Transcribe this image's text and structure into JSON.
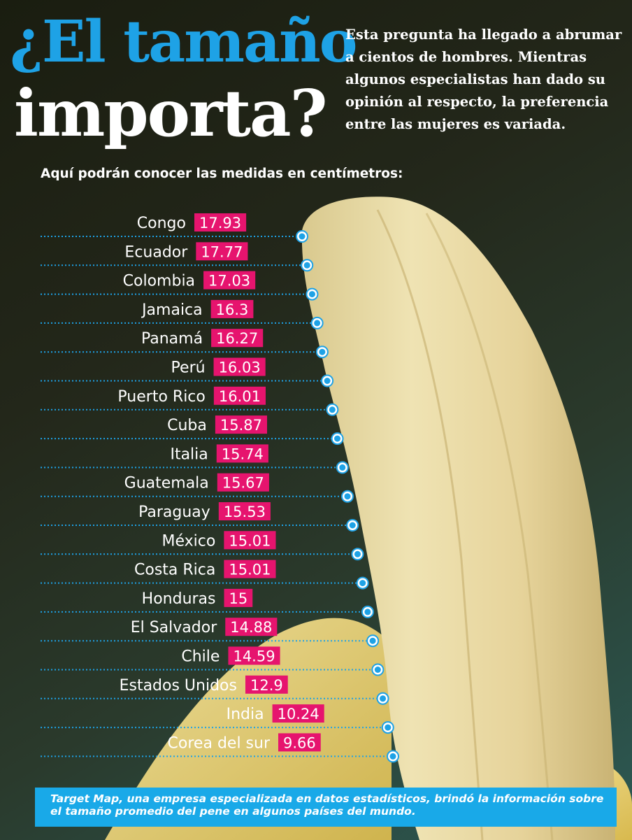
{
  "header": {
    "title_line1": "¿El tamaño",
    "title_line2": "importa?",
    "intro": "Esta pregunta ha llegado a abrumar a cientos de hombres. Mientras algunos especialistas han dado su opinión al respecto, la preferencia entre las mujeres es variada.",
    "subtitle": "Aquí podrán conocer las medidas en centímetros:"
  },
  "chart_data": {
    "type": "bar",
    "title": "",
    "categories": [
      "Congo",
      "Ecuador",
      "Colombia",
      "Jamaica",
      "Panamá",
      "Perú",
      "Puerto Rico",
      "Cuba",
      "Italia",
      "Guatemala",
      "Paraguay",
      "México",
      "Costa Rica",
      "Honduras",
      "El Salvador",
      "Chile",
      "Estados Unidos",
      "India",
      "Corea del sur"
    ],
    "values": [
      17.93,
      17.77,
      17.03,
      16.3,
      16.27,
      16.03,
      16.01,
      15.87,
      15.74,
      15.67,
      15.53,
      15.01,
      15.01,
      15,
      14.88,
      14.59,
      12.9,
      10.24,
      9.66
    ],
    "value_labels": [
      "17.93",
      "17.77",
      "17.03",
      "16.3",
      "16.27",
      "16.03",
      "16.01",
      "15.87",
      "15.74",
      "15.67",
      "15.53",
      "15.01",
      "15.01",
      "15",
      "14.88",
      "14.59",
      "12.9",
      "10.24",
      "9.66"
    ],
    "unit": "cm",
    "colors": {
      "badge": "#e6146e",
      "marker": "#1ea2e6",
      "leader": "#1ea2e6"
    }
  },
  "footer": {
    "text": "Target Map, una empresa especializada en datos estadísticos, brindó la información sobre el tamaño promedio del pene en algunos países del mundo."
  }
}
